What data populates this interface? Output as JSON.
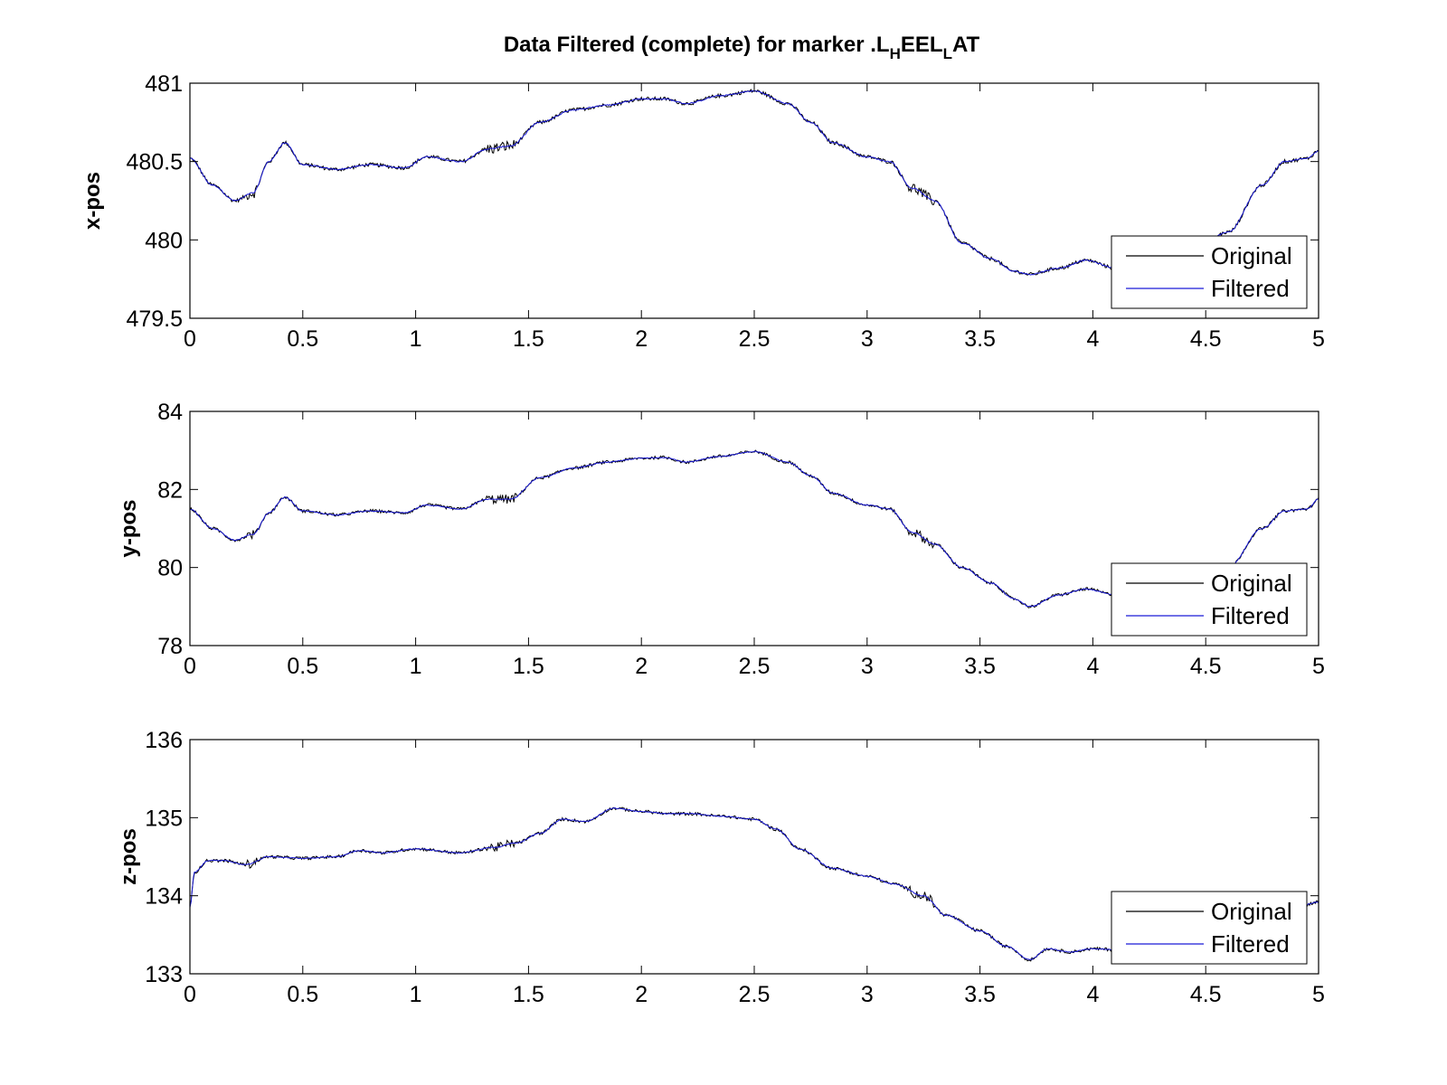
{
  "figure": {
    "title_parts": [
      {
        "text": "Data Filtered (complete) for marker .L",
        "sub": false
      },
      {
        "text": "H",
        "sub": true
      },
      {
        "text": "EEL",
        "sub": false
      },
      {
        "text": "L",
        "sub": true
      },
      {
        "text": "AT",
        "sub": false
      }
    ]
  },
  "colors": {
    "original": "#000000",
    "filtered": "#1a1ad6",
    "axes": "#000000",
    "background": "#ffffff"
  },
  "chart_data": [
    {
      "type": "line",
      "ylabel": "x-pos",
      "xlabel": "",
      "xlim": [
        0,
        5
      ],
      "ylim": [
        479.5,
        481
      ],
      "x_ticks": [
        "0",
        "0.5",
        "1",
        "1.5",
        "2",
        "2.5",
        "3",
        "3.5",
        "4",
        "4.5",
        "5"
      ],
      "y_ticks": [
        "479.5",
        "480",
        "480.5",
        "481"
      ],
      "grid": false,
      "legend": {
        "position": "bottom-right",
        "entries": [
          "Original",
          "Filtered"
        ]
      },
      "keypoints": [
        [
          0,
          480.52
        ],
        [
          0.1,
          480.35
        ],
        [
          0.2,
          480.25
        ],
        [
          0.28,
          480.3
        ],
        [
          0.35,
          480.5
        ],
        [
          0.42,
          480.62
        ],
        [
          0.5,
          480.48
        ],
        [
          0.65,
          480.45
        ],
        [
          0.8,
          480.48
        ],
        [
          0.95,
          480.46
        ],
        [
          1.05,
          480.53
        ],
        [
          1.2,
          480.5
        ],
        [
          1.32,
          480.58
        ],
        [
          1.42,
          480.6
        ],
        [
          1.55,
          480.75
        ],
        [
          1.7,
          480.83
        ],
        [
          1.85,
          480.86
        ],
        [
          2.0,
          480.9
        ],
        [
          2.1,
          480.9
        ],
        [
          2.2,
          480.87
        ],
        [
          2.35,
          480.92
        ],
        [
          2.5,
          480.95
        ],
        [
          2.65,
          480.87
        ],
        [
          2.75,
          480.75
        ],
        [
          2.85,
          480.62
        ],
        [
          3.0,
          480.53
        ],
        [
          3.1,
          480.5
        ],
        [
          3.2,
          480.33
        ],
        [
          3.3,
          480.25
        ],
        [
          3.42,
          479.98
        ],
        [
          3.55,
          479.88
        ],
        [
          3.65,
          479.8
        ],
        [
          3.72,
          479.78
        ],
        [
          3.85,
          479.82
        ],
        [
          3.97,
          479.87
        ],
        [
          4.1,
          479.82
        ],
        [
          4.3,
          479.85
        ],
        [
          4.48,
          479.98
        ],
        [
          4.6,
          480.05
        ],
        [
          4.75,
          480.35
        ],
        [
          4.85,
          480.5
        ],
        [
          4.95,
          480.52
        ],
        [
          5.0,
          480.57
        ]
      ],
      "noise_original": 0.012,
      "noise_filtered": 0.004
    },
    {
      "type": "line",
      "ylabel": "y-pos",
      "xlabel": "",
      "xlim": [
        0,
        5
      ],
      "ylim": [
        78,
        84
      ],
      "x_ticks": [
        "0",
        "0.5",
        "1",
        "1.5",
        "2",
        "2.5",
        "3",
        "3.5",
        "4",
        "4.5",
        "5"
      ],
      "y_ticks": [
        "78",
        "80",
        "82",
        "84"
      ],
      "grid": false,
      "legend": {
        "position": "bottom-right",
        "entries": [
          "Original",
          "Filtered"
        ]
      },
      "keypoints": [
        [
          0,
          81.5
        ],
        [
          0.1,
          81.0
        ],
        [
          0.2,
          80.7
        ],
        [
          0.28,
          80.85
        ],
        [
          0.35,
          81.4
        ],
        [
          0.42,
          81.8
        ],
        [
          0.5,
          81.45
        ],
        [
          0.65,
          81.35
        ],
        [
          0.8,
          81.45
        ],
        [
          0.95,
          81.4
        ],
        [
          1.05,
          81.6
        ],
        [
          1.2,
          81.5
        ],
        [
          1.32,
          81.75
        ],
        [
          1.42,
          81.75
        ],
        [
          1.55,
          82.3
        ],
        [
          1.7,
          82.55
        ],
        [
          1.85,
          82.7
        ],
        [
          2.0,
          82.8
        ],
        [
          2.1,
          82.82
        ],
        [
          2.2,
          82.7
        ],
        [
          2.35,
          82.85
        ],
        [
          2.5,
          82.97
        ],
        [
          2.65,
          82.7
        ],
        [
          2.75,
          82.35
        ],
        [
          2.85,
          81.9
        ],
        [
          3.0,
          81.6
        ],
        [
          3.1,
          81.5
        ],
        [
          3.2,
          80.9
        ],
        [
          3.3,
          80.6
        ],
        [
          3.42,
          80.0
        ],
        [
          3.55,
          79.6
        ],
        [
          3.65,
          79.2
        ],
        [
          3.72,
          79.0
        ],
        [
          3.85,
          79.3
        ],
        [
          3.97,
          79.45
        ],
        [
          4.1,
          79.3
        ],
        [
          4.3,
          79.35
        ],
        [
          4.48,
          79.8
        ],
        [
          4.6,
          80.0
        ],
        [
          4.75,
          81.0
        ],
        [
          4.85,
          81.45
        ],
        [
          4.95,
          81.5
        ],
        [
          5.0,
          81.75
        ]
      ],
      "noise_original": 0.04,
      "noise_filtered": 0.012
    },
    {
      "type": "line",
      "ylabel": "z-pos",
      "xlabel": "",
      "xlim": [
        0,
        5
      ],
      "ylim": [
        133,
        136
      ],
      "x_ticks": [
        "0",
        "0.5",
        "1",
        "1.5",
        "2",
        "2.5",
        "3",
        "3.5",
        "4",
        "4.5",
        "5"
      ],
      "y_ticks": [
        "133",
        "134",
        "135",
        "136"
      ],
      "grid": false,
      "legend": {
        "position": "bottom-right",
        "entries": [
          "Original",
          "Filtered"
        ]
      },
      "keypoints": [
        [
          0,
          133.85
        ],
        [
          0.02,
          134.3
        ],
        [
          0.08,
          134.45
        ],
        [
          0.15,
          134.45
        ],
        [
          0.25,
          134.4
        ],
        [
          0.35,
          134.5
        ],
        [
          0.5,
          134.48
        ],
        [
          0.65,
          134.5
        ],
        [
          0.75,
          134.58
        ],
        [
          0.85,
          134.55
        ],
        [
          1.0,
          134.6
        ],
        [
          1.2,
          134.55
        ],
        [
          1.35,
          134.62
        ],
        [
          1.45,
          134.68
        ],
        [
          1.55,
          134.8
        ],
        [
          1.65,
          134.98
        ],
        [
          1.75,
          134.95
        ],
        [
          1.88,
          135.12
        ],
        [
          2.0,
          135.08
        ],
        [
          2.12,
          135.05
        ],
        [
          2.22,
          135.05
        ],
        [
          2.35,
          135.02
        ],
        [
          2.5,
          134.98
        ],
        [
          2.6,
          134.85
        ],
        [
          2.7,
          134.6
        ],
        [
          2.85,
          134.35
        ],
        [
          3.0,
          134.25
        ],
        [
          3.12,
          134.15
        ],
        [
          3.25,
          134.0
        ],
        [
          3.35,
          133.75
        ],
        [
          3.5,
          133.55
        ],
        [
          3.62,
          133.35
        ],
        [
          3.72,
          133.18
        ],
        [
          3.8,
          133.32
        ],
        [
          3.9,
          133.28
        ],
        [
          4.0,
          133.32
        ],
        [
          4.15,
          133.3
        ],
        [
          4.3,
          133.35
        ],
        [
          4.48,
          133.55
        ],
        [
          4.6,
          133.65
        ],
        [
          4.75,
          133.8
        ],
        [
          4.9,
          133.85
        ],
        [
          5.0,
          133.92
        ]
      ],
      "noise_original": 0.02,
      "noise_filtered": 0.006
    }
  ]
}
